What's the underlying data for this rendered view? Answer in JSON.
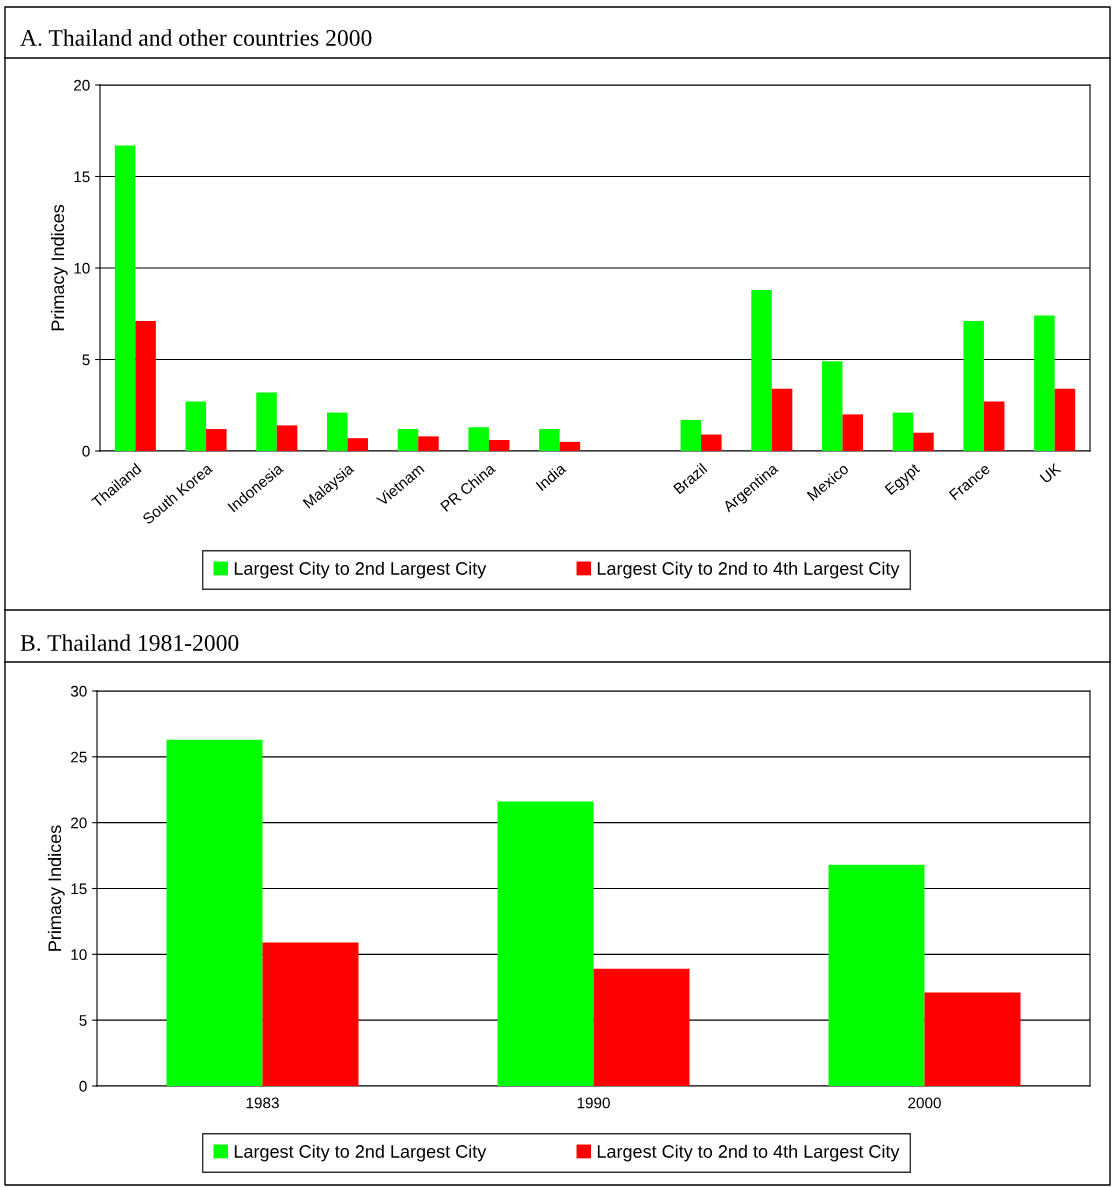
{
  "chart_data": [
    {
      "type": "bar",
      "title": "A. Thailand and other countries 2000",
      "ylabel": "Primacy Indices",
      "categories": [
        "Thailand",
        "South Korea",
        "Indonesia",
        "Malaysia",
        "Vietnam",
        "PR China",
        "India",
        null,
        "Brazil",
        "Argentina",
        "Mexico",
        "Egypt",
        "France",
        "UK"
      ],
      "series": [
        {
          "name": "Largest City to 2nd Largest City",
          "color": "#00ff00",
          "values": [
            16.7,
            2.7,
            3.2,
            2.1,
            1.2,
            1.3,
            1.2,
            null,
            1.7,
            8.8,
            4.9,
            2.1,
            7.1,
            7.4
          ]
        },
        {
          "name": "Largest City to 2nd to 4th Largest City",
          "color": "#ff0000",
          "values": [
            7.1,
            1.2,
            1.4,
            0.7,
            0.8,
            0.6,
            0.5,
            null,
            0.9,
            3.4,
            2.0,
            1.0,
            2.7,
            3.4
          ]
        }
      ],
      "ylim": [
        0,
        20
      ],
      "yticks": [
        0,
        5,
        10,
        15,
        20
      ],
      "grid": "y",
      "legend": "bottom"
    },
    {
      "type": "bar",
      "title": "B. Thailand 1981-2000",
      "ylabel": "Primacy Indices",
      "categories": [
        "1983",
        "1990",
        "2000"
      ],
      "series": [
        {
          "name": "Largest City to 2nd Largest City",
          "color": "#00ff00",
          "values": [
            26.3,
            21.6,
            16.8
          ]
        },
        {
          "name": "Largest City to 2nd to 4th Largest City",
          "color": "#ff0000",
          "values": [
            10.9,
            8.9,
            7.1
          ]
        }
      ],
      "ylim": [
        0,
        30
      ],
      "yticks": [
        0,
        5,
        10,
        15,
        20,
        25,
        30
      ],
      "grid": "y",
      "legend": "bottom"
    }
  ]
}
